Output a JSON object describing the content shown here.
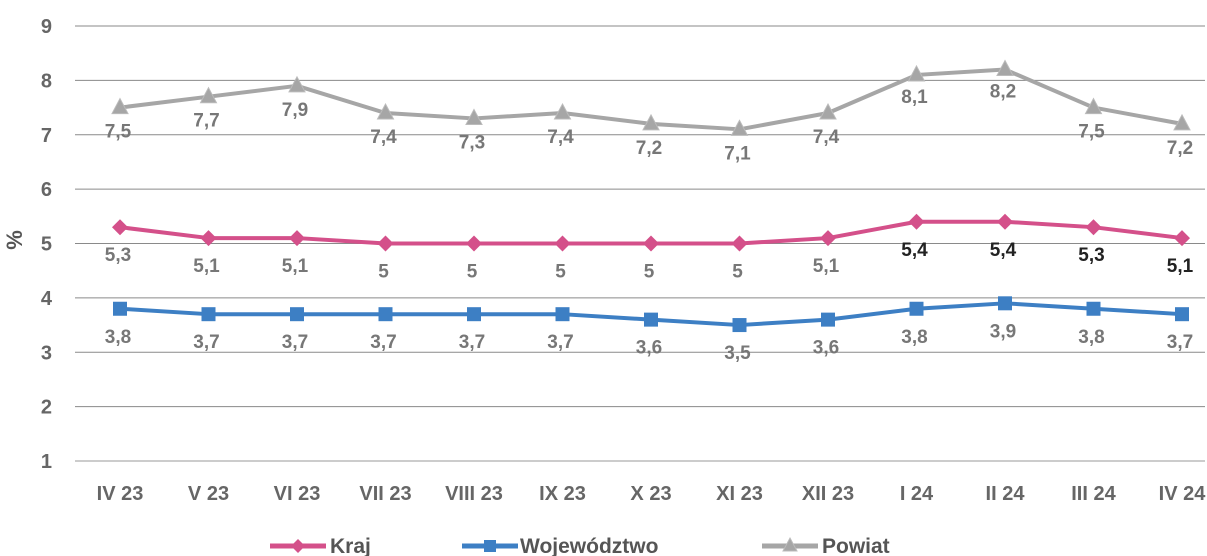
{
  "chart_data": {
    "type": "line",
    "ylabel": "%",
    "ylim": [
      1,
      9
    ],
    "yticks": [
      "1",
      "2",
      "3",
      "4",
      "5",
      "6",
      "7",
      "8",
      "9"
    ],
    "categories": [
      "IV 23",
      "V 23",
      "VI 23",
      "VII 23",
      "VIII 23",
      "IX 23",
      "X 23",
      "XI 23",
      "XII 23",
      "I 24",
      "II 24",
      "III 24",
      "IV 24"
    ],
    "grid": true,
    "legend_position": "bottom",
    "series": [
      {
        "name": "Kraj",
        "color": "#d4508a",
        "marker": "diamond",
        "values": [
          5.3,
          5.1,
          5.1,
          5.0,
          5.0,
          5.0,
          5.0,
          5.0,
          5.1,
          5.4,
          5.4,
          5.3,
          5.1
        ],
        "labels": [
          "5,3",
          "5,1",
          "5,1",
          "5",
          "5",
          "5",
          "5",
          "5",
          "5,1",
          "5,4",
          "5,4",
          "5,3",
          "5,1"
        ]
      },
      {
        "name": "Województwo",
        "color": "#3d7fc4",
        "marker": "square",
        "values": [
          3.8,
          3.7,
          3.7,
          3.7,
          3.7,
          3.7,
          3.6,
          3.5,
          3.6,
          3.8,
          3.9,
          3.8,
          3.7
        ],
        "labels": [
          "3,8",
          "3,7",
          "3,7",
          "3,7",
          "3,7",
          "3,7",
          "3,6",
          "3,5",
          "3,6",
          "3,8",
          "3,9",
          "3,8",
          "3,7"
        ]
      },
      {
        "name": "Powiat",
        "color": "#a6a6a6",
        "marker": "triangle",
        "values": [
          7.5,
          7.7,
          7.9,
          7.4,
          7.3,
          7.4,
          7.2,
          7.1,
          7.4,
          8.1,
          8.2,
          7.5,
          7.2
        ],
        "labels": [
          "7,5",
          "7,7",
          "7,9",
          "7,4",
          "7,3",
          "7,4",
          "7,2",
          "7,1",
          "7,4",
          "8,1",
          "8,2",
          "7,5",
          "7,2"
        ]
      }
    ]
  }
}
